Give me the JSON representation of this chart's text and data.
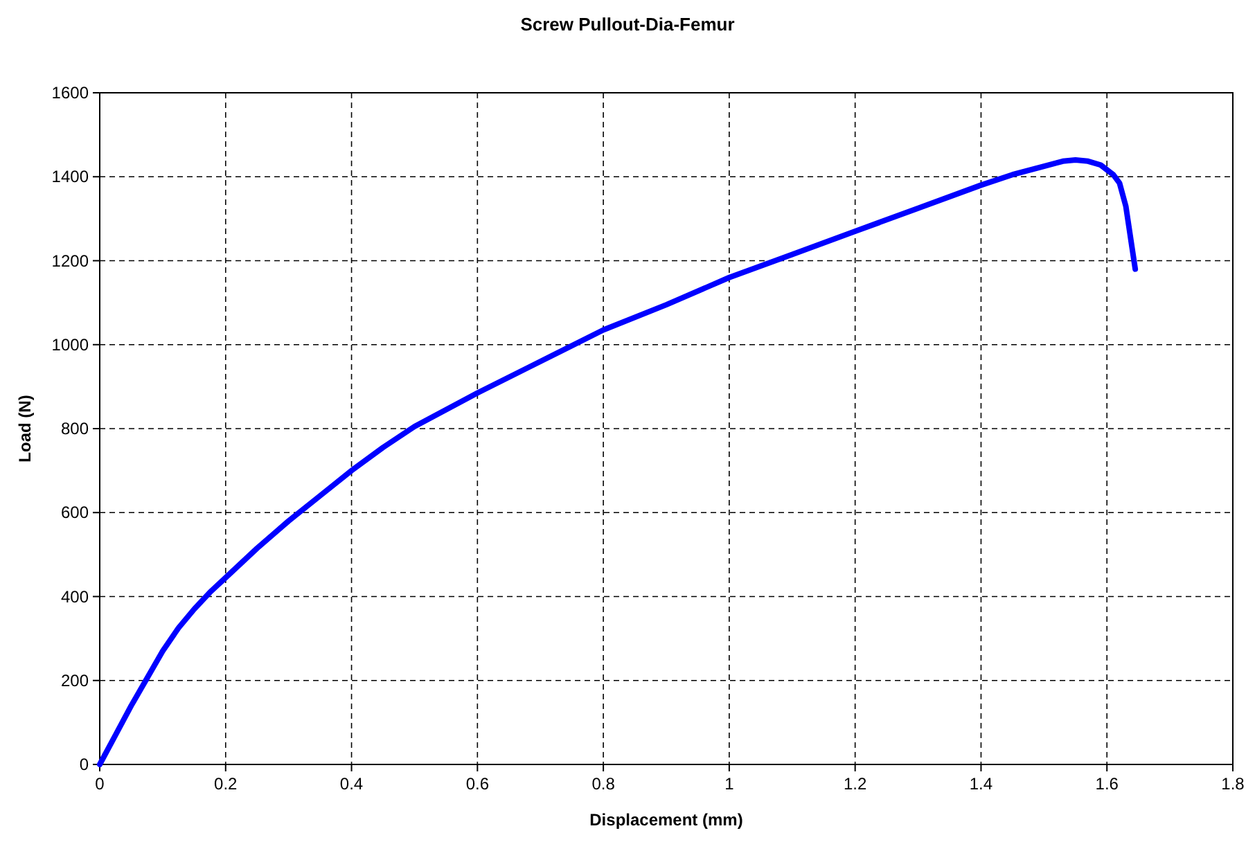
{
  "chart_data": {
    "type": "line",
    "title": "Screw Pullout-Dia-Femur",
    "xlabel": "Displacement (mm)",
    "ylabel": "Load (N)",
    "xlim": [
      0,
      1.8
    ],
    "ylim": [
      0,
      1600
    ],
    "xticks": [
      0,
      0.2,
      0.4,
      0.6,
      0.8,
      1,
      1.2,
      1.4,
      1.6,
      1.8
    ],
    "yticks": [
      0,
      200,
      400,
      600,
      800,
      1000,
      1200,
      1400,
      1600
    ],
    "grid": true,
    "line_style": "solid",
    "marker": "none",
    "series": [
      {
        "color": "#0000ff",
        "x": [
          0,
          0.025,
          0.05,
          0.075,
          0.1,
          0.125,
          0.15,
          0.175,
          0.2,
          0.25,
          0.3,
          0.35,
          0.4,
          0.45,
          0.5,
          0.55,
          0.6,
          0.7,
          0.8,
          0.9,
          1.0,
          1.1,
          1.2,
          1.3,
          1.4,
          1.45,
          1.5,
          1.53,
          1.55,
          1.57,
          1.59,
          1.61,
          1.62,
          1.63,
          1.635,
          1.64,
          1.645
        ],
        "values": [
          0,
          70,
          140,
          205,
          270,
          325,
          370,
          410,
          445,
          515,
          580,
          640,
          700,
          755,
          805,
          845,
          885,
          960,
          1035,
          1095,
          1160,
          1215,
          1270,
          1325,
          1380,
          1405,
          1425,
          1437,
          1440,
          1437,
          1428,
          1405,
          1385,
          1330,
          1280,
          1230,
          1180
        ]
      }
    ]
  }
}
